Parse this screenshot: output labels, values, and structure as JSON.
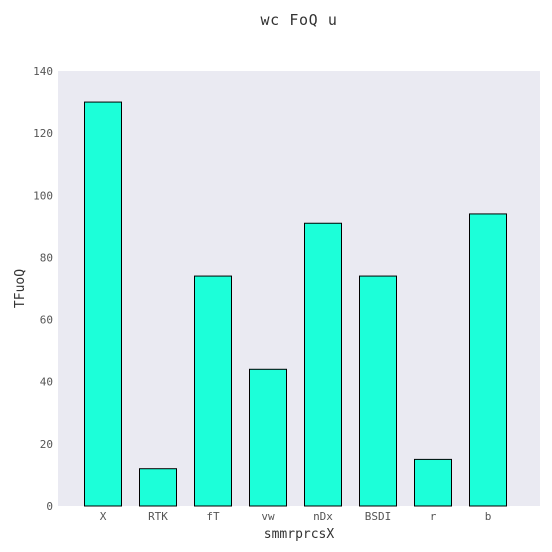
{
  "chart_data": {
    "type": "bar",
    "title": "wc FoQ u",
    "xlabel": "smmrprcsX",
    "ylabel": "TFuoQ",
    "categories": [
      "X",
      "RTK",
      "fT",
      "vw",
      "nDx",
      "BSDI",
      "r",
      "b"
    ],
    "values": [
      130,
      12,
      74,
      44,
      91,
      74,
      15,
      94
    ],
    "ylim": [
      0,
      140
    ],
    "yticks": [
      0,
      20,
      40,
      60,
      80,
      100,
      120,
      140
    ],
    "bar_color": "#1cffd9",
    "background_color": "#eaeaf2",
    "grid": false,
    "legend": "none"
  }
}
